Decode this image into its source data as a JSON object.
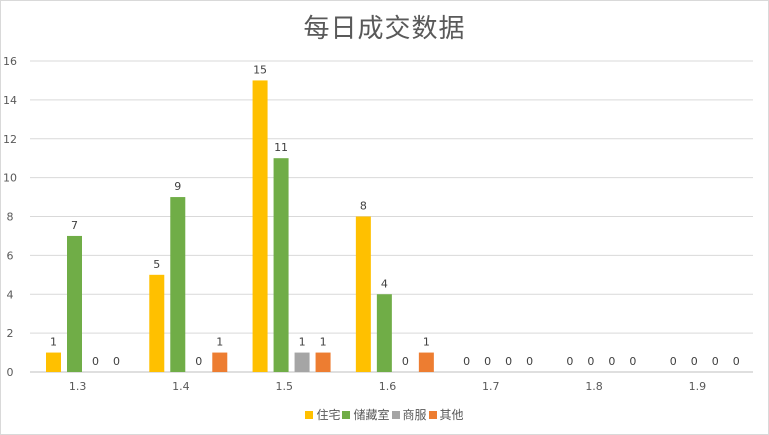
{
  "chart_data": {
    "type": "bar",
    "title": "每日成交数据",
    "xlabel": "",
    "ylabel": "",
    "categories": [
      "1.3",
      "1.4",
      "1.5",
      "1.6",
      "1.7",
      "1.8",
      "1.9"
    ],
    "ylim": [
      0,
      16
    ],
    "yticks": [
      0,
      2,
      4,
      6,
      8,
      10,
      12,
      14,
      16
    ],
    "grid": true,
    "legend_position": "bottom",
    "data_labels": true,
    "series": [
      {
        "name": "住宅",
        "color": "#ffc000",
        "values": [
          1,
          5,
          15,
          8,
          0,
          0,
          0
        ]
      },
      {
        "name": "储藏室",
        "color": "#70ad47",
        "values": [
          7,
          9,
          11,
          4,
          0,
          0,
          0
        ]
      },
      {
        "name": "商服",
        "color": "#a5a5a5",
        "values": [
          0,
          0,
          1,
          0,
          0,
          0,
          0
        ]
      },
      {
        "name": "其他",
        "color": "#ed7d31",
        "values": [
          0,
          1,
          1,
          1,
          0,
          0,
          0
        ]
      }
    ]
  }
}
